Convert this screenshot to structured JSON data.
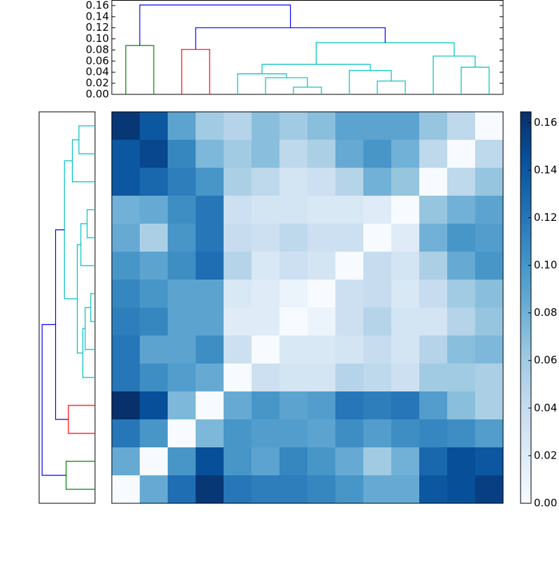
{
  "chart_data": {
    "type": "clustermap",
    "colormap": [
      "#f7fbff",
      "#deebf7",
      "#c6dbef",
      "#9ecae1",
      "#6baed6",
      "#4292c6",
      "#2171b5",
      "#08519c",
      "#08306b"
    ],
    "vlim": [
      0,
      0.1645
    ],
    "colorbar_ticks": [
      {
        "value": 0,
        "label": "0.00"
      },
      0.02,
      0.04,
      0.06,
      0.08,
      {
        "value": 0.1,
        "label": "0.10"
      },
      0.12,
      0.14,
      0.16
    ],
    "values": [
      [
        0.16,
        0.14,
        0.09,
        0.06,
        0.05,
        0.07,
        0.06,
        0.07,
        0.09,
        0.09,
        0.09,
        0.065,
        0.045,
        0.0
      ],
      [
        0.14,
        0.15,
        0.11,
        0.075,
        0.06,
        0.07,
        0.045,
        0.055,
        0.085,
        0.1,
        0.08,
        0.045,
        0.0,
        0.045
      ],
      [
        0.14,
        0.13,
        0.115,
        0.1,
        0.055,
        0.045,
        0.03,
        0.035,
        0.05,
        0.08,
        0.065,
        0.0,
        0.045,
        0.065
      ],
      [
        0.08,
        0.085,
        0.105,
        0.12,
        0.035,
        0.03,
        0.03,
        0.025,
        0.025,
        0.02,
        0.0,
        0.065,
        0.08,
        0.09
      ],
      [
        0.085,
        0.055,
        0.1,
        0.12,
        0.04,
        0.035,
        0.045,
        0.035,
        0.035,
        0.0,
        0.02,
        0.08,
        0.1,
        0.095
      ],
      [
        0.1,
        0.09,
        0.105,
        0.125,
        0.05,
        0.025,
        0.035,
        0.03,
        0.0,
        0.04,
        0.03,
        0.055,
        0.085,
        0.1
      ],
      [
        0.11,
        0.1,
        0.09,
        0.09,
        0.025,
        0.02,
        0.01,
        0.0,
        0.035,
        0.04,
        0.025,
        0.04,
        0.06,
        0.07
      ],
      [
        0.115,
        0.11,
        0.09,
        0.09,
        0.02,
        0.02,
        0.0,
        0.01,
        0.035,
        0.05,
        0.03,
        0.03,
        0.05,
        0.065
      ],
      [
        0.12,
        0.09,
        0.09,
        0.105,
        0.035,
        0.0,
        0.025,
        0.025,
        0.03,
        0.04,
        0.03,
        0.05,
        0.07,
        0.075
      ],
      [
        0.12,
        0.105,
        0.095,
        0.085,
        0.0,
        0.035,
        0.03,
        0.03,
        0.05,
        0.045,
        0.035,
        0.06,
        0.06,
        0.055
      ],
      [
        0.165,
        0.145,
        0.075,
        0.0,
        0.085,
        0.1,
        0.09,
        0.095,
        0.12,
        0.115,
        0.12,
        0.095,
        0.07,
        0.055
      ],
      [
        0.12,
        0.1,
        0.0,
        0.075,
        0.1,
        0.095,
        0.095,
        0.09,
        0.105,
        0.095,
        0.105,
        0.11,
        0.105,
        0.095
      ],
      [
        0.085,
        0.0,
        0.1,
        0.145,
        0.1,
        0.09,
        0.11,
        0.1,
        0.085,
        0.06,
        0.08,
        0.13,
        0.145,
        0.14
      ],
      [
        0.0,
        0.085,
        0.125,
        0.16,
        0.12,
        0.115,
        0.115,
        0.11,
        0.1,
        0.085,
        0.085,
        0.14,
        0.145,
        0.155
      ]
    ],
    "dendrogram": {
      "ylim": [
        0,
        0.17
      ],
      "yticks": [
        {
          "value": 0,
          "label": "0.00"
        },
        0.02,
        0.04,
        0.06,
        0.08,
        {
          "value": 0.1,
          "label": "0.10"
        },
        0.12,
        0.14,
        0.16
      ],
      "links": [
        {
          "x": [
            0,
            0,
            1,
            1
          ],
          "y": [
            0,
            0.088,
            0.088,
            0
          ],
          "color": "#008000"
        },
        {
          "x": [
            2,
            2,
            3,
            3
          ],
          "y": [
            0,
            0.081,
            0.081,
            0
          ],
          "color": "#ff0000"
        },
        {
          "x": [
            6,
            6,
            7,
            7
          ],
          "y": [
            0,
            0.013,
            0.013,
            0
          ],
          "color": "#00bfbf"
        },
        {
          "x": [
            5,
            5,
            6.5,
            6.5
          ],
          "y": [
            0,
            0.03,
            0.03,
            0.013
          ],
          "color": "#00bfbf"
        },
        {
          "x": [
            4,
            4,
            5.75,
            5.75
          ],
          "y": [
            0,
            0.037,
            0.037,
            0.03
          ],
          "color": "#00bfbf"
        },
        {
          "x": [
            9,
            9,
            10,
            10
          ],
          "y": [
            0,
            0.024,
            0.024,
            0
          ],
          "color": "#00bfbf"
        },
        {
          "x": [
            8,
            8,
            9.5,
            9.5
          ],
          "y": [
            0,
            0.043,
            0.043,
            0.024
          ],
          "color": "#00bfbf"
        },
        {
          "x": [
            4.875,
            4.875,
            8.75,
            8.75
          ],
          "y": [
            0.037,
            0.054,
            0.054,
            0.043
          ],
          "color": "#00bfbf"
        },
        {
          "x": [
            12,
            12,
            13,
            13
          ],
          "y": [
            0,
            0.049,
            0.049,
            0
          ],
          "color": "#00bfbf"
        },
        {
          "x": [
            11,
            11,
            12.5,
            12.5
          ],
          "y": [
            0,
            0.069,
            0.069,
            0.049
          ],
          "color": "#00bfbf"
        },
        {
          "x": [
            6.8125,
            6.8125,
            11.75,
            11.75
          ],
          "y": [
            0.054,
            0.093,
            0.093,
            0.069
          ],
          "color": "#00bfbf"
        },
        {
          "x": [
            2.5,
            2.5,
            9.28125,
            9.28125
          ],
          "y": [
            0.081,
            0.12,
            0.12,
            0.093
          ],
          "color": "#0000ff"
        },
        {
          "x": [
            0.5,
            0.5,
            5.890625,
            5.890625
          ],
          "y": [
            0.088,
            0.161,
            0.161,
            0.12
          ],
          "color": "#0000ff"
        }
      ]
    }
  }
}
